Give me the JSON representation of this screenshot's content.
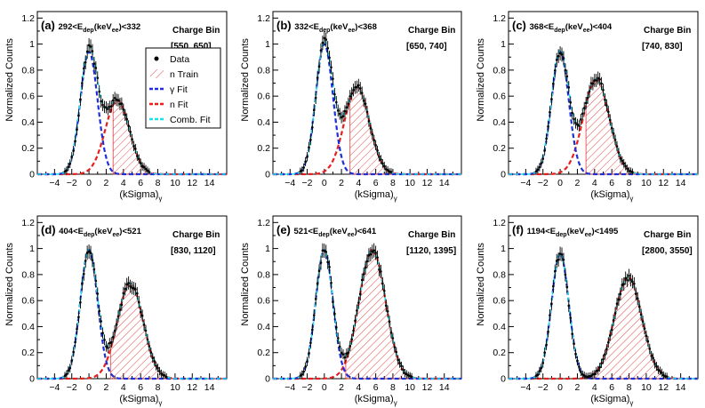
{
  "figure": {
    "ylabel": "Normalized Counts",
    "xlabel_main": "(kSigma)",
    "xlabel_sub": "γ",
    "charge_bin_label": "Charge Bin",
    "colors": {
      "data": "#000000",
      "n_train": "#e23a3a",
      "gamma_fit": "#1f2fd8",
      "n_fit": "#e81e1e",
      "comb_fit": "#1ee0e8"
    }
  },
  "legend": {
    "items": [
      {
        "label": "Data",
        "icon": "data-point-icon"
      },
      {
        "label": "n Train",
        "icon": "hatched-box-icon"
      },
      {
        "label": "γ Fit",
        "icon": "dashed-line-icon"
      },
      {
        "label": "n Fit",
        "icon": "dashed-line-icon"
      },
      {
        "label": "Comb. Fit",
        "icon": "dashed-line-icon"
      }
    ]
  },
  "chart_data": [
    {
      "type": "line",
      "panel": "(a)",
      "energy_label": {
        "lo": "292",
        "hi": "332"
      },
      "charge_bin": "[550, 650]",
      "xlim": [
        -6,
        16
      ],
      "ylim": [
        0,
        1.25
      ],
      "xticks": [
        -4,
        -2,
        0,
        2,
        4,
        6,
        8,
        10,
        12,
        14
      ],
      "yticks": [
        0,
        0.2,
        0.4,
        0.6,
        0.8,
        1,
        1.2
      ],
      "series": [
        {
          "name": "γ Fit",
          "amp": 0.94,
          "mean": 0.0,
          "sigma": 1.0
        },
        {
          "name": "n Fit",
          "amp": 0.57,
          "mean": 3.3,
          "sigma": 1.4,
          "train_cut": 2.8
        }
      ]
    },
    {
      "type": "line",
      "panel": "(b)",
      "energy_label": {
        "lo": "332",
        "hi": "368"
      },
      "charge_bin": "[650, 740]",
      "xlim": [
        -6,
        16
      ],
      "ylim": [
        0,
        1.25
      ],
      "xticks": [
        -4,
        -2,
        0,
        2,
        4,
        6,
        8,
        10,
        12,
        14
      ],
      "yticks": [
        0,
        0.2,
        0.4,
        0.6,
        0.8,
        1,
        1.2
      ],
      "series": [
        {
          "name": "γ Fit",
          "amp": 1.0,
          "mean": 0.0,
          "sigma": 1.0
        },
        {
          "name": "n Fit",
          "amp": 0.67,
          "mean": 3.8,
          "sigma": 1.45,
          "train_cut": 3.0
        }
      ]
    },
    {
      "type": "line",
      "panel": "(c)",
      "energy_label": {
        "lo": "368",
        "hi": "404"
      },
      "charge_bin": "[740, 830]",
      "xlim": [
        -6,
        16
      ],
      "ylim": [
        0,
        1.25
      ],
      "xticks": [
        -4,
        -2,
        0,
        2,
        4,
        6,
        8,
        10,
        12,
        14
      ],
      "yticks": [
        0,
        0.2,
        0.4,
        0.6,
        0.8,
        1,
        1.2
      ],
      "series": [
        {
          "name": "γ Fit",
          "amp": 0.94,
          "mean": 0.0,
          "sigma": 1.0
        },
        {
          "name": "n Fit",
          "amp": 0.73,
          "mean": 4.2,
          "sigma": 1.5,
          "train_cut": 3.0
        }
      ]
    },
    {
      "type": "line",
      "panel": "(d)",
      "energy_label": {
        "lo": "404",
        "hi": "521"
      },
      "charge_bin": "[830, 1120]",
      "xlim": [
        -6,
        16
      ],
      "ylim": [
        0,
        1.25
      ],
      "xticks": [
        -4,
        -2,
        0,
        2,
        4,
        6,
        8,
        10,
        12,
        14
      ],
      "yticks": [
        0,
        0.2,
        0.4,
        0.6,
        0.8,
        1,
        1.2
      ],
      "series": [
        {
          "name": "γ Fit",
          "amp": 0.99,
          "mean": 0.0,
          "sigma": 1.0
        },
        {
          "name": "n Fit",
          "amp": 0.73,
          "mean": 4.8,
          "sigma": 1.5,
          "train_cut": 2.5
        }
      ]
    },
    {
      "type": "line",
      "panel": "(e)",
      "energy_label": {
        "lo": "521",
        "hi": "641"
      },
      "charge_bin": "[1120, 1395]",
      "xlim": [
        -6,
        16
      ],
      "ylim": [
        0,
        1.25
      ],
      "xticks": [
        -4,
        -2,
        0,
        2,
        4,
        6,
        8,
        10,
        12,
        14
      ],
      "yticks": [
        0,
        0.2,
        0.4,
        0.6,
        0.8,
        1,
        1.2
      ],
      "series": [
        {
          "name": "γ Fit",
          "amp": 0.99,
          "mean": 0.0,
          "sigma": 1.0
        },
        {
          "name": "n Fit",
          "amp": 0.99,
          "mean": 5.6,
          "sigma": 1.55,
          "train_cut": 2.5
        }
      ]
    },
    {
      "type": "line",
      "panel": "(f)",
      "energy_label": {
        "lo": "1194",
        "hi": "1495"
      },
      "charge_bin": "[2800, 3550]",
      "xlim": [
        -6,
        16
      ],
      "ylim": [
        0,
        1.25
      ],
      "xticks": [
        -4,
        -2,
        0,
        2,
        4,
        6,
        8,
        10,
        12,
        14
      ],
      "yticks": [
        0,
        0.2,
        0.4,
        0.6,
        0.8,
        1,
        1.2
      ],
      "series": [
        {
          "name": "γ Fit",
          "amp": 0.96,
          "mean": 0.0,
          "sigma": 1.0
        },
        {
          "name": "n Fit",
          "amp": 0.78,
          "mean": 7.9,
          "sigma": 1.6,
          "train_cut": 4.0
        }
      ]
    }
  ]
}
